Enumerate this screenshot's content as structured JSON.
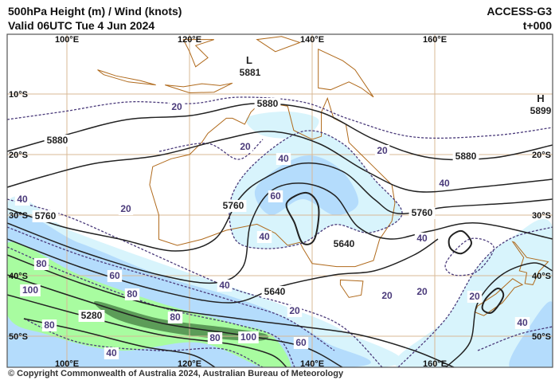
{
  "header": {
    "title": "500hPa Height (m) / Wind (knots)",
    "valid": "Valid 06UTC Tue 4 Jun 2024",
    "model": "ACCESS-G3",
    "lead_time": "t+000"
  },
  "footer": {
    "copyright": "© Copyright Commonwealth of Australia 2024, Australian Bureau of Meteorology"
  },
  "map": {
    "lon_labels": [
      "100°E",
      "120°E",
      "140°E",
      "160°E"
    ],
    "lat_labels": [
      "10°S",
      "20°S",
      "30°S",
      "40°S",
      "50°S"
    ],
    "pressure_centres": [
      {
        "type": "L",
        "value": "5881"
      },
      {
        "type": "H",
        "value": "5899"
      }
    ],
    "height_labels": [
      "5880",
      "5880",
      "5880",
      "5760",
      "5760",
      "5760",
      "5640",
      "5640",
      "5280"
    ],
    "wind_labels": [
      "20",
      "20",
      "20",
      "20",
      "20",
      "20",
      "20",
      "20",
      "40",
      "40",
      "40",
      "40",
      "40",
      "40",
      "40",
      "40",
      "60",
      "60",
      "60",
      "80",
      "80",
      "80",
      "80",
      "80",
      "100",
      "100"
    ],
    "colors": {
      "wind_20_40": "#d8f4fc",
      "wind_40_60": "#b4dcfc",
      "wind_60_80": "#a8fca0",
      "wind_80_100": "#5c9c58",
      "coastline": "#b06a1c",
      "gridline": "#d8b896",
      "height_contour": "#222222",
      "isotach": "#4a3a7a"
    }
  }
}
